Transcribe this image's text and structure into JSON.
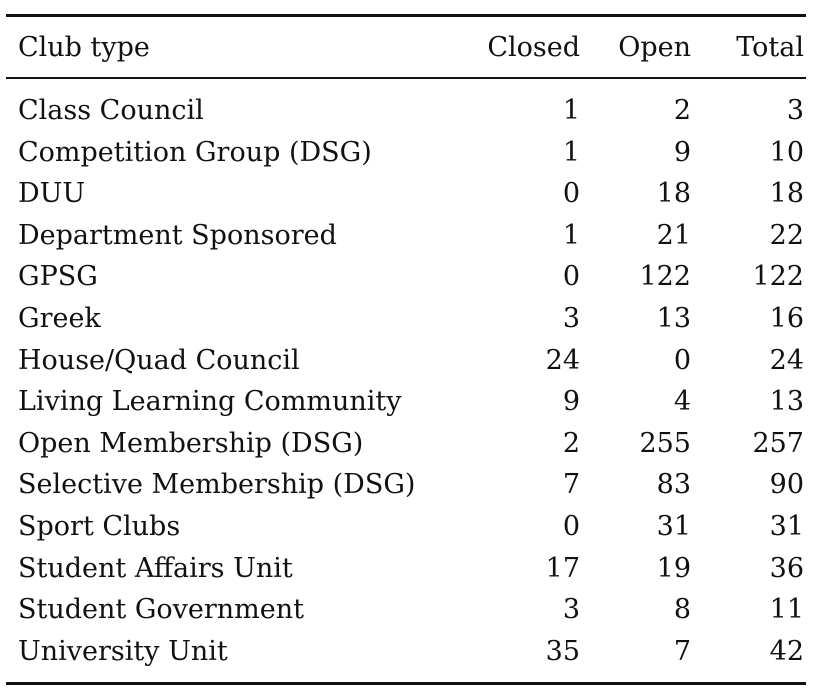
{
  "table": {
    "columns": [
      "Club type",
      "Closed",
      "Open",
      "Total"
    ],
    "rows": [
      [
        "Class Council",
        "1",
        "2",
        "3"
      ],
      [
        "Competition Group (DSG)",
        "1",
        "9",
        "10"
      ],
      [
        "DUU",
        "0",
        "18",
        "18"
      ],
      [
        "Department Sponsored",
        "1",
        "21",
        "22"
      ],
      [
        "GPSG",
        "0",
        "122",
        "122"
      ],
      [
        "Greek",
        "3",
        "13",
        "16"
      ],
      [
        "House/Quad Council",
        "24",
        "0",
        "24"
      ],
      [
        "Living Learning Community",
        "9",
        "4",
        "13"
      ],
      [
        "Open Membership (DSG)",
        "2",
        "255",
        "257"
      ],
      [
        "Selective Membership (DSG)",
        "7",
        "83",
        "90"
      ],
      [
        "Sport Clubs",
        "0",
        "31",
        "31"
      ],
      [
        "Student Affairs Unit",
        "17",
        "19",
        "36"
      ],
      [
        "Student Government",
        "3",
        "8",
        "11"
      ],
      [
        "University Unit",
        "35",
        "7",
        "42"
      ]
    ]
  }
}
